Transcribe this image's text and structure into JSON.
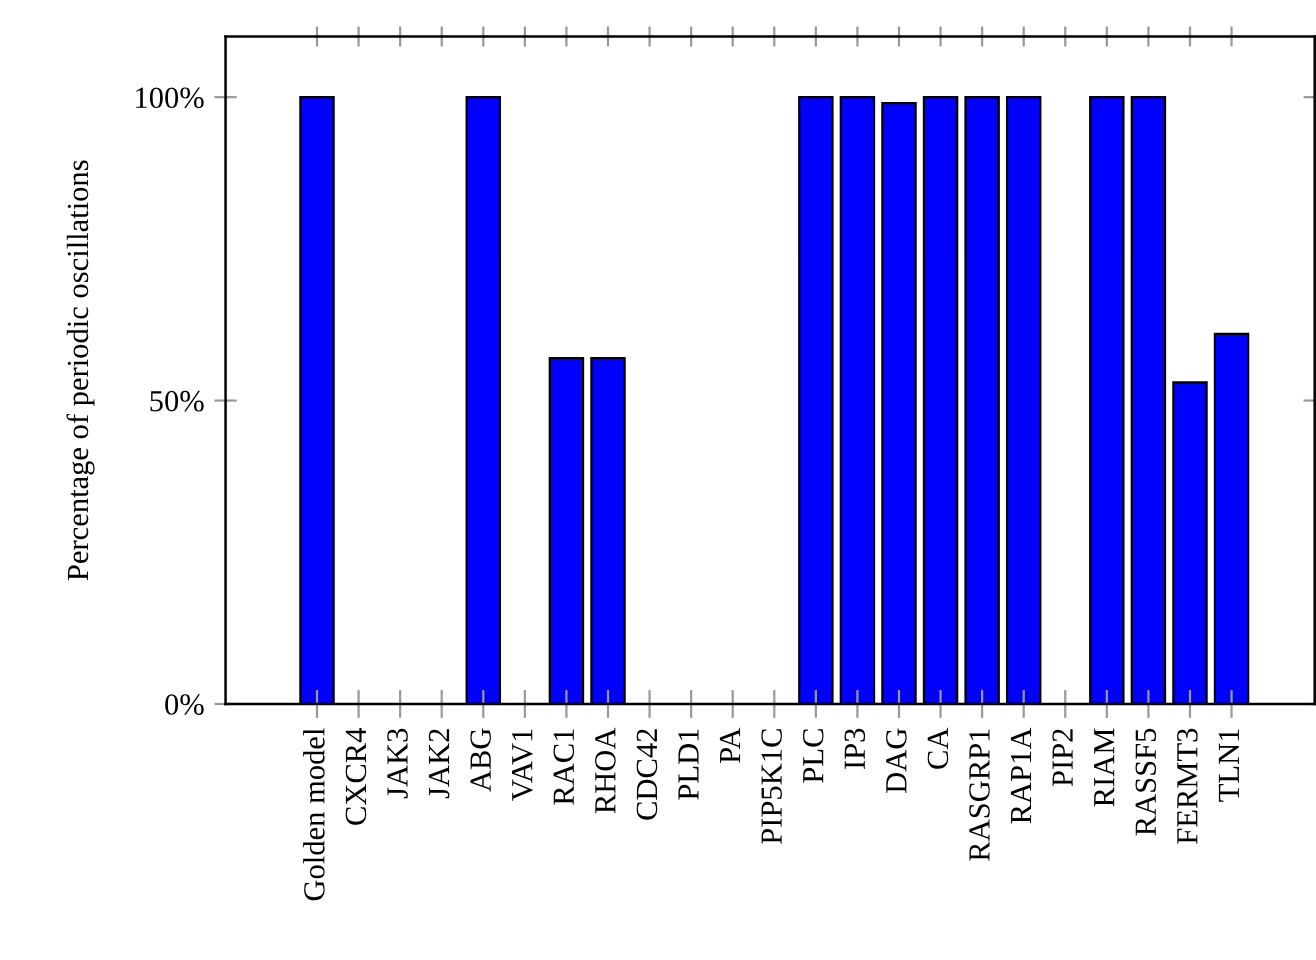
{
  "chart_data": {
    "type": "bar",
    "ylabel": "Percentage of periodic oscillations",
    "categories": [
      "Golden model",
      "CXCR4",
      "JAK3",
      "JAK2",
      "ABG",
      "VAV1",
      "RAC1",
      "RHOA",
      "CDC42",
      "PLD1",
      "PA",
      "PIP5K1C",
      "PLC",
      "IP3",
      "DAG",
      "CA",
      "RASGRP1",
      "RAP1A",
      "PIP2",
      "RIAM",
      "RASSF5",
      "FERMT3",
      "TLN1"
    ],
    "values": [
      100,
      0,
      0,
      0,
      100,
      0,
      57,
      57,
      0,
      0,
      0,
      0,
      100,
      100,
      99,
      100,
      100,
      100,
      0,
      100,
      100,
      53,
      61
    ],
    "color": "#0000ff",
    "ylim": [
      0,
      110
    ],
    "yticks": [
      {
        "value": 0,
        "label": "0%"
      },
      {
        "value": 50,
        "label": "50%"
      },
      {
        "value": 100,
        "label": "100%"
      }
    ],
    "grid": false,
    "legend": false
  }
}
